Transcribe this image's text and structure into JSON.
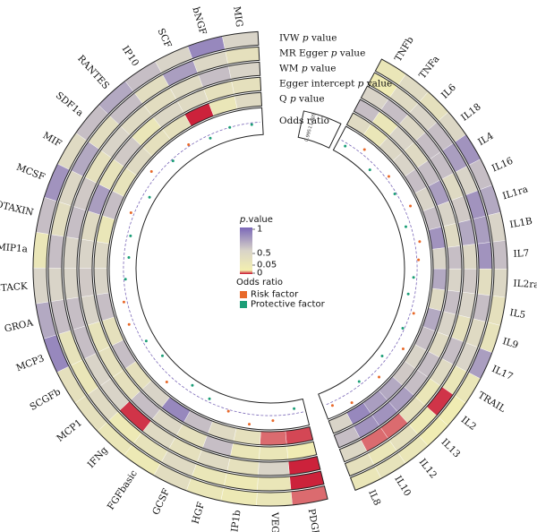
{
  "chart_data": {
    "type": "heatmap",
    "layout": "circular",
    "rings": [
      {
        "name": "IVW p value",
        "p_label": "IVW ",
        "p_italic": "p",
        "p_suffix": " value"
      },
      {
        "name": "MR Egger p value",
        "p_label": "MR Egger ",
        "p_italic": "p",
        "p_suffix": " value"
      },
      {
        "name": "WM p value",
        "p_label": "WM ",
        "p_italic": "p",
        "p_suffix": " value"
      },
      {
        "name": "Egger intercept p value",
        "p_label": "Egger intercept ",
        "p_italic": "p",
        "p_suffix": " value"
      },
      {
        "name": "Q p value",
        "p_label": "Q ",
        "p_italic": "p",
        "p_suffix": " value"
      },
      {
        "name": "Odds ratio",
        "p_label": "Odds ratio",
        "p_italic": "",
        "p_suffix": ""
      }
    ],
    "groups": [
      {
        "id": "left",
        "categories": [
          "PDGFbb",
          "VEGF",
          "MIP1b",
          "HGF",
          "GCSF",
          "FGFbasic",
          "IFNg",
          "MCP1",
          "SCGFb",
          "MCP3",
          "GROA",
          "CTACK",
          "MIP1a",
          "EOTAXIN",
          "MCSF",
          "MIF",
          "SDF1a",
          "RANTES",
          "IP10",
          "SCF",
          "bNGF",
          "MIG"
        ],
        "ivw": [
          0.05,
          0.2,
          0.15,
          0.2,
          0.35,
          0.15,
          0.2,
          0.3,
          0.3,
          0.85,
          0.7,
          0.5,
          0.2,
          0.6,
          0.8,
          0.4,
          0.6,
          0.7,
          0.6,
          0.5,
          0.85,
          0.5
        ],
        "egger": [
          0.01,
          0.2,
          0.15,
          0.2,
          0.4,
          0.25,
          0.15,
          0.4,
          0.2,
          0.25,
          0.6,
          0.5,
          0.6,
          0.35,
          0.45,
          0.7,
          0.35,
          0.6,
          0.35,
          0.75,
          0.45,
          0.3
        ],
        "wm": [
          0.01,
          0.5,
          0.3,
          0.4,
          0.3,
          0.4,
          0.02,
          0.5,
          0.5,
          0.6,
          0.6,
          0.5,
          0.5,
          0.6,
          0.55,
          0.3,
          0.5,
          0.4,
          0.35,
          0.4,
          0.6,
          0.5
        ],
        "intercept": [
          0.1,
          0.2,
          0.2,
          0.6,
          0.3,
          0.45,
          0.6,
          0.3,
          0.3,
          0.25,
          0.5,
          0.55,
          0.5,
          0.4,
          0.75,
          0.25,
          0.55,
          0.2,
          0.45,
          0.4,
          0.3,
          0.3
        ],
        "q": [
          0.03,
          0.05,
          0.3,
          0.4,
          0.6,
          0.85,
          0.5,
          0.3,
          0.6,
          0.3,
          0.6,
          0.5,
          0.45,
          0.2,
          0.6,
          0.25,
          0.4,
          0.3,
          0.3,
          0.01,
          0.2,
          0.4
        ],
        "or": [
          0.997,
          1.003,
          1.006,
          1.001,
          0.998,
          0.996,
          1.004,
          0.995,
          0.998,
          1.003,
          1.002,
          0.999,
          0.997,
          0.998,
          1.002,
          0.996,
          1.004,
          0.999,
          1.001,
          0.998,
          1.0,
          0.999
        ]
      },
      {
        "id": "right",
        "categories": [
          "TNFb",
          "TNFa",
          "IL6",
          "IL18",
          "IL4",
          "IL16",
          "IL1ra",
          "IL1B",
          "IL7",
          "IL2ra",
          "IL5",
          "IL9",
          "IL17",
          "TRAIL",
          "IL2",
          "IL13",
          "IL12",
          "IL10",
          "IL8"
        ],
        "ivw": [
          0.2,
          0.4,
          0.3,
          0.45,
          0.8,
          0.6,
          0.7,
          0.5,
          0.6,
          0.45,
          0.3,
          0.25,
          0.75,
          0.2,
          0.1,
          0.1,
          0.2,
          0.25,
          0.2
        ],
        "egger": [
          0.1,
          0.4,
          0.5,
          0.6,
          0.75,
          0.5,
          0.8,
          0.75,
          0.8,
          0.35,
          0.6,
          0.4,
          0.5,
          0.2,
          0.02,
          0.15,
          0.3,
          0.2,
          0.3
        ],
        "wm": [
          0.5,
          0.6,
          0.45,
          0.6,
          0.6,
          0.4,
          0.55,
          0.7,
          0.45,
          0.55,
          0.5,
          0.3,
          0.6,
          0.4,
          0.2,
          0.3,
          0.05,
          0.05,
          0.45
        ],
        "intercept": [
          0.6,
          0.2,
          0.5,
          0.4,
          0.6,
          0.75,
          0.5,
          0.4,
          0.6,
          0.5,
          0.6,
          0.5,
          0.4,
          0.6,
          0.6,
          0.75,
          0.8,
          0.8,
          0.6
        ],
        "q": [
          0.4,
          0.2,
          0.45,
          0.5,
          0.6,
          0.5,
          0.6,
          0.8,
          0.5,
          0.7,
          0.4,
          0.7,
          0.6,
          0.5,
          0.55,
          0.7,
          0.75,
          0.85,
          0.5
        ],
        "or": [
          0.998,
          1.003,
          0.996,
          1.002,
          0.999,
          1.004,
          0.997,
          1.003,
          1.001,
          0.998,
          0.996,
          1.002,
          0.999,
          1.005,
          0.997,
          1.004,
          0.998,
          1.006,
          1.002
        ]
      }
    ],
    "or_axis_ticks": [
      "0.995",
      "1",
      "1.005"
    ],
    "or_range": [
      0.994,
      1.007
    ],
    "legend": {
      "title_italic": "p",
      "title_rest": ".value",
      "ticks": [
        "1",
        "0.5",
        "0.05",
        "0"
      ],
      "or_title": "Odds ratio",
      "or_items": [
        {
          "label": "Risk factor",
          "color": "#e8692a"
        },
        {
          "label": "Protective factor",
          "color": "#1b9e77"
        }
      ]
    },
    "colors": {
      "p_high": "#7b68b8",
      "p_mid": "#d9d4c8",
      "p_low": "#f3efb0",
      "p_sig": "#c8102e",
      "or_line": "#7b68b8",
      "risk": "#e8692a",
      "protective": "#1b9e77"
    }
  }
}
